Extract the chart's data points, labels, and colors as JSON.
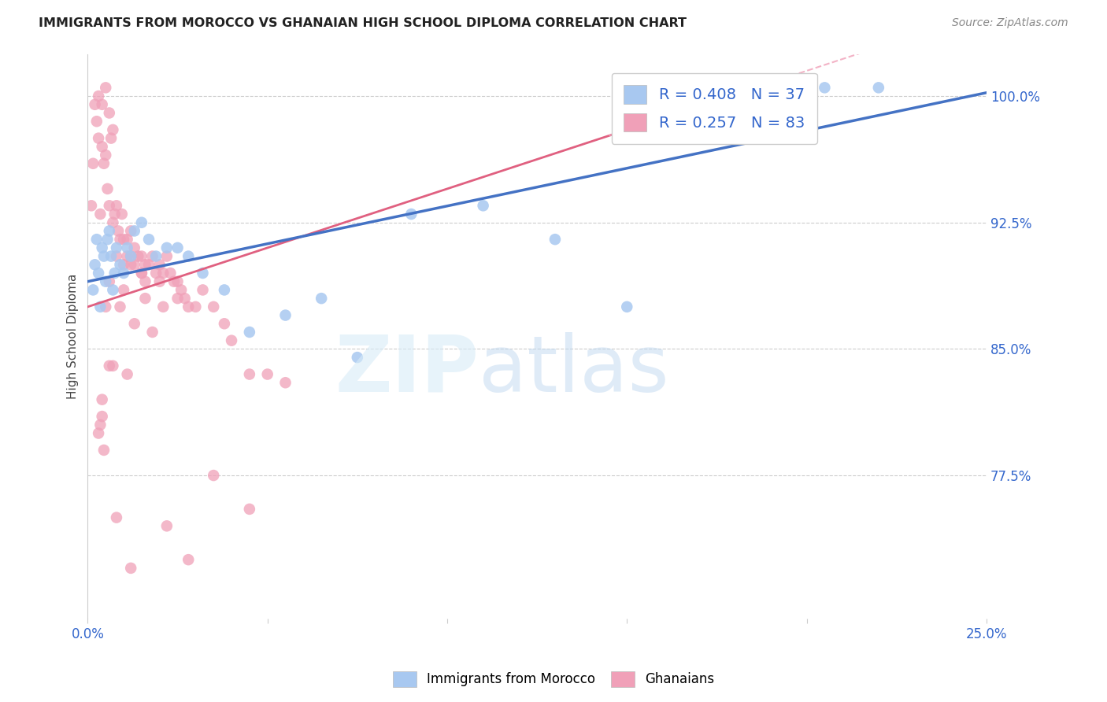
{
  "title": "IMMIGRANTS FROM MOROCCO VS GHANAIAN HIGH SCHOOL DIPLOMA CORRELATION CHART",
  "source": "Source: ZipAtlas.com",
  "ylabel": "High School Diploma",
  "right_yticks": [
    77.5,
    85.0,
    92.5,
    100.0
  ],
  "right_ytick_labels": [
    "77.5%",
    "85.0%",
    "92.5%",
    "100.0%"
  ],
  "x_min": 0.0,
  "x_max": 25.0,
  "y_min": 69.0,
  "y_max": 102.5,
  "blue_color": "#A8C8F0",
  "pink_color": "#F0A0B8",
  "blue_line_color": "#4472C4",
  "pink_line_color": "#E06080",
  "dashed_color": "#F0A0B8",
  "legend_R_blue": "R = 0.408",
  "legend_N_blue": "N = 37",
  "legend_R_pink": "R = 0.257",
  "legend_N_pink": "N = 83",
  "blue_x": [
    0.15,
    0.2,
    0.25,
    0.3,
    0.35,
    0.4,
    0.45,
    0.5,
    0.55,
    0.6,
    0.65,
    0.7,
    0.75,
    0.8,
    0.9,
    1.0,
    1.1,
    1.2,
    1.3,
    1.5,
    1.7,
    1.9,
    2.2,
    2.5,
    2.8,
    3.2,
    3.8,
    4.5,
    5.5,
    6.5,
    7.5,
    9.0,
    11.0,
    13.0,
    15.0,
    20.5,
    22.0
  ],
  "blue_y": [
    88.5,
    90.0,
    91.5,
    89.5,
    87.5,
    91.0,
    90.5,
    89.0,
    91.5,
    92.0,
    90.5,
    88.5,
    89.5,
    91.0,
    90.0,
    89.5,
    91.0,
    90.5,
    92.0,
    92.5,
    91.5,
    90.5,
    91.0,
    91.0,
    90.5,
    89.5,
    88.5,
    86.0,
    87.0,
    88.0,
    84.5,
    93.0,
    93.5,
    91.5,
    87.5,
    100.5,
    100.5
  ],
  "pink_x": [
    0.1,
    0.15,
    0.2,
    0.25,
    0.3,
    0.3,
    0.35,
    0.4,
    0.4,
    0.45,
    0.5,
    0.5,
    0.55,
    0.6,
    0.6,
    0.65,
    0.7,
    0.7,
    0.75,
    0.8,
    0.85,
    0.9,
    0.95,
    1.0,
    1.0,
    1.1,
    1.1,
    1.2,
    1.2,
    1.3,
    1.3,
    1.4,
    1.5,
    1.5,
    1.6,
    1.6,
    1.7,
    1.8,
    1.9,
    2.0,
    2.1,
    2.2,
    2.3,
    2.4,
    2.5,
    2.6,
    2.7,
    2.8,
    3.0,
    3.2,
    3.5,
    3.8,
    4.0,
    4.5,
    5.0,
    5.5,
    1.0,
    0.5,
    0.6,
    0.8,
    1.2,
    1.5,
    2.0,
    2.5,
    1.8,
    0.7,
    0.4,
    0.9,
    1.3,
    1.6,
    2.1,
    0.6,
    1.1,
    3.5,
    4.5,
    0.3,
    0.35,
    0.4,
    0.45,
    1.2,
    0.8,
    2.8,
    2.2
  ],
  "pink_y": [
    93.5,
    96.0,
    99.5,
    98.5,
    97.5,
    100.0,
    93.0,
    99.5,
    97.0,
    96.0,
    100.5,
    96.5,
    94.5,
    99.0,
    93.5,
    97.5,
    98.0,
    92.5,
    93.0,
    93.5,
    92.0,
    91.5,
    93.0,
    91.5,
    90.0,
    91.5,
    90.5,
    92.0,
    90.0,
    91.0,
    90.0,
    90.5,
    90.5,
    89.5,
    90.0,
    89.0,
    90.0,
    90.5,
    89.5,
    90.0,
    89.5,
    90.5,
    89.5,
    89.0,
    89.0,
    88.5,
    88.0,
    87.5,
    87.5,
    88.5,
    87.5,
    86.5,
    85.5,
    83.5,
    83.5,
    83.0,
    88.5,
    87.5,
    89.0,
    90.5,
    90.5,
    89.5,
    89.0,
    88.0,
    86.0,
    84.0,
    82.0,
    87.5,
    86.5,
    88.0,
    87.5,
    84.0,
    83.5,
    77.5,
    75.5,
    80.0,
    80.5,
    81.0,
    79.0,
    72.0,
    75.0,
    72.5,
    74.5
  ]
}
